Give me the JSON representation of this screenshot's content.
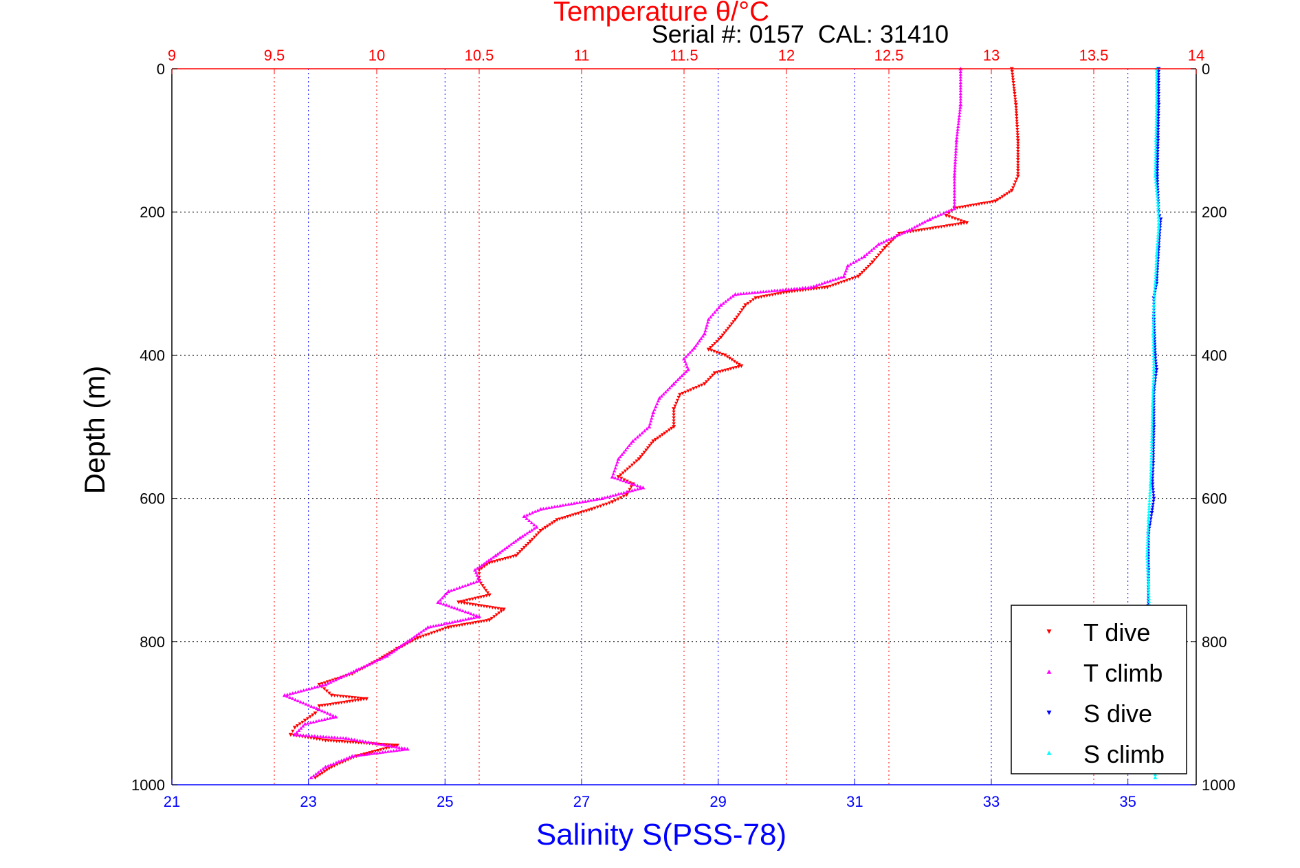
{
  "chart_data": {
    "type": "scatter",
    "title": "Temperature θ/°C",
    "annotation": "Serial #: 0157  CAL: 31410",
    "xlabel": "Salinity S(PSS-78)",
    "ylabel": "Depth (m)",
    "y_axis": {
      "range": [
        0,
        1000
      ],
      "reversed": true,
      "ticks": [
        "0",
        "200",
        "400",
        "600",
        "800",
        "1000"
      ],
      "tick_values": [
        0,
        200,
        400,
        600,
        800,
        1000
      ]
    },
    "temperature_axis": {
      "position": "top",
      "color": "#ff0000",
      "range": [
        9,
        14
      ],
      "ticks": [
        "9",
        "9.5",
        "10",
        "10.5",
        "11",
        "11.5",
        "12",
        "12.5",
        "13",
        "13.5",
        "14"
      ],
      "tick_values": [
        9,
        9.5,
        10,
        10.5,
        11,
        11.5,
        12,
        12.5,
        13,
        13.5,
        14
      ],
      "grid": true
    },
    "salinity_axis": {
      "position": "bottom",
      "color": "#0000ff",
      "range": [
        21,
        36
      ],
      "ticks": [
        "21",
        "23",
        "25",
        "27",
        "29",
        "31",
        "33",
        "35"
      ],
      "tick_values": [
        21,
        23,
        25,
        27,
        29,
        31,
        33,
        35
      ],
      "grid": true
    },
    "legend": {
      "position": "bottom-right",
      "entries": [
        "T dive",
        "T climb",
        "S dive",
        "S climb"
      ]
    },
    "series": [
      {
        "name": "T dive",
        "axis": "temperature",
        "color": "#ff0000",
        "marker": "triangle-down",
        "points": [
          [
            13.1,
            0
          ],
          [
            13.12,
            50
          ],
          [
            13.13,
            100
          ],
          [
            13.13,
            150
          ],
          [
            13.1,
            170
          ],
          [
            13.02,
            185
          ],
          [
            12.82,
            195
          ],
          [
            12.78,
            205
          ],
          [
            12.88,
            215
          ],
          [
            12.55,
            230
          ],
          [
            12.48,
            250
          ],
          [
            12.42,
            270
          ],
          [
            12.35,
            290
          ],
          [
            12.2,
            305
          ],
          [
            12.0,
            312
          ],
          [
            11.85,
            320
          ],
          [
            11.8,
            330
          ],
          [
            11.75,
            350
          ],
          [
            11.68,
            375
          ],
          [
            11.62,
            392
          ],
          [
            11.7,
            400
          ],
          [
            11.78,
            415
          ],
          [
            11.65,
            425
          ],
          [
            11.6,
            440
          ],
          [
            11.48,
            455
          ],
          [
            11.45,
            475
          ],
          [
            11.45,
            500
          ],
          [
            11.35,
            520
          ],
          [
            11.28,
            545
          ],
          [
            11.18,
            570
          ],
          [
            11.25,
            580
          ],
          [
            11.22,
            595
          ],
          [
            11.15,
            605
          ],
          [
            11.05,
            615
          ],
          [
            10.88,
            630
          ],
          [
            10.8,
            645
          ],
          [
            10.75,
            660
          ],
          [
            10.68,
            680
          ],
          [
            10.55,
            690
          ],
          [
            10.5,
            700
          ],
          [
            10.5,
            715
          ],
          [
            10.55,
            735
          ],
          [
            10.4,
            745
          ],
          [
            10.62,
            755
          ],
          [
            10.55,
            770
          ],
          [
            10.35,
            780
          ],
          [
            10.2,
            795
          ],
          [
            10.1,
            810
          ],
          [
            9.98,
            830
          ],
          [
            9.88,
            845
          ],
          [
            9.72,
            860
          ],
          [
            9.78,
            875
          ],
          [
            9.95,
            880
          ],
          [
            9.72,
            890
          ],
          [
            9.7,
            900
          ],
          [
            9.65,
            910
          ],
          [
            9.6,
            920
          ],
          [
            9.58,
            930
          ],
          [
            9.75,
            938
          ],
          [
            10.1,
            945
          ],
          [
            9.9,
            960
          ],
          [
            9.78,
            975
          ],
          [
            9.7,
            990
          ]
        ]
      },
      {
        "name": "T climb",
        "axis": "temperature",
        "color": "#ff00ff",
        "marker": "triangle-up",
        "points": [
          [
            12.85,
            0
          ],
          [
            12.85,
            50
          ],
          [
            12.83,
            100
          ],
          [
            12.82,
            150
          ],
          [
            12.82,
            195
          ],
          [
            12.7,
            210
          ],
          [
            12.6,
            225
          ],
          [
            12.45,
            245
          ],
          [
            12.38,
            262
          ],
          [
            12.3,
            275
          ],
          [
            12.28,
            290
          ],
          [
            12.12,
            305
          ],
          [
            11.75,
            315
          ],
          [
            11.68,
            330
          ],
          [
            11.62,
            350
          ],
          [
            11.6,
            370
          ],
          [
            11.55,
            390
          ],
          [
            11.5,
            405
          ],
          [
            11.52,
            420
          ],
          [
            11.45,
            440
          ],
          [
            11.38,
            460
          ],
          [
            11.35,
            480
          ],
          [
            11.33,
            500
          ],
          [
            11.25,
            520
          ],
          [
            11.18,
            545
          ],
          [
            11.15,
            570
          ],
          [
            11.3,
            585
          ],
          [
            11.1,
            600
          ],
          [
            10.8,
            615
          ],
          [
            10.72,
            625
          ],
          [
            10.78,
            640
          ],
          [
            10.7,
            655
          ],
          [
            10.58,
            680
          ],
          [
            10.48,
            700
          ],
          [
            10.5,
            715
          ],
          [
            10.35,
            730
          ],
          [
            10.3,
            745
          ],
          [
            10.5,
            765
          ],
          [
            10.25,
            780
          ],
          [
            10.15,
            800
          ],
          [
            10.05,
            820
          ],
          [
            9.9,
            840
          ],
          [
            9.75,
            860
          ],
          [
            9.55,
            875
          ],
          [
            9.72,
            895
          ],
          [
            9.8,
            905
          ],
          [
            9.65,
            915
          ],
          [
            9.6,
            930
          ],
          [
            9.85,
            935
          ],
          [
            10.15,
            950
          ],
          [
            9.88,
            960
          ],
          [
            9.75,
            975
          ],
          [
            9.68,
            990
          ]
        ]
      },
      {
        "name": "S dive",
        "axis": "salinity",
        "color": "#0000ff",
        "marker": "triangle-down",
        "points": [
          [
            35.45,
            0
          ],
          [
            35.45,
            50
          ],
          [
            35.44,
            100
          ],
          [
            35.43,
            150
          ],
          [
            35.45,
            200
          ],
          [
            35.48,
            210
          ],
          [
            35.45,
            250
          ],
          [
            35.42,
            300
          ],
          [
            35.38,
            320
          ],
          [
            35.38,
            350
          ],
          [
            35.4,
            400
          ],
          [
            35.42,
            420
          ],
          [
            35.38,
            450
          ],
          [
            35.38,
            500
          ],
          [
            35.37,
            550
          ],
          [
            35.36,
            580
          ],
          [
            35.38,
            600
          ],
          [
            35.35,
            620
          ],
          [
            35.3,
            650
          ],
          [
            35.3,
            700
          ],
          [
            35.3,
            750
          ]
        ]
      },
      {
        "name": "S climb",
        "axis": "salinity",
        "color": "#00ffff",
        "marker": "triangle-up",
        "points": [
          [
            35.42,
            0
          ],
          [
            35.42,
            50
          ],
          [
            35.41,
            100
          ],
          [
            35.4,
            150
          ],
          [
            35.44,
            190
          ],
          [
            35.45,
            220
          ],
          [
            35.42,
            260
          ],
          [
            35.4,
            300
          ],
          [
            35.38,
            330
          ],
          [
            35.37,
            370
          ],
          [
            35.38,
            420
          ],
          [
            35.36,
            470
          ],
          [
            35.35,
            520
          ],
          [
            35.33,
            580
          ],
          [
            35.3,
            630
          ],
          [
            35.28,
            680
          ],
          [
            35.3,
            720
          ],
          [
            35.32,
            760
          ],
          [
            35.33,
            800
          ],
          [
            35.36,
            850
          ],
          [
            35.38,
            900
          ],
          [
            35.4,
            960
          ],
          [
            35.4,
            990
          ]
        ]
      }
    ]
  }
}
